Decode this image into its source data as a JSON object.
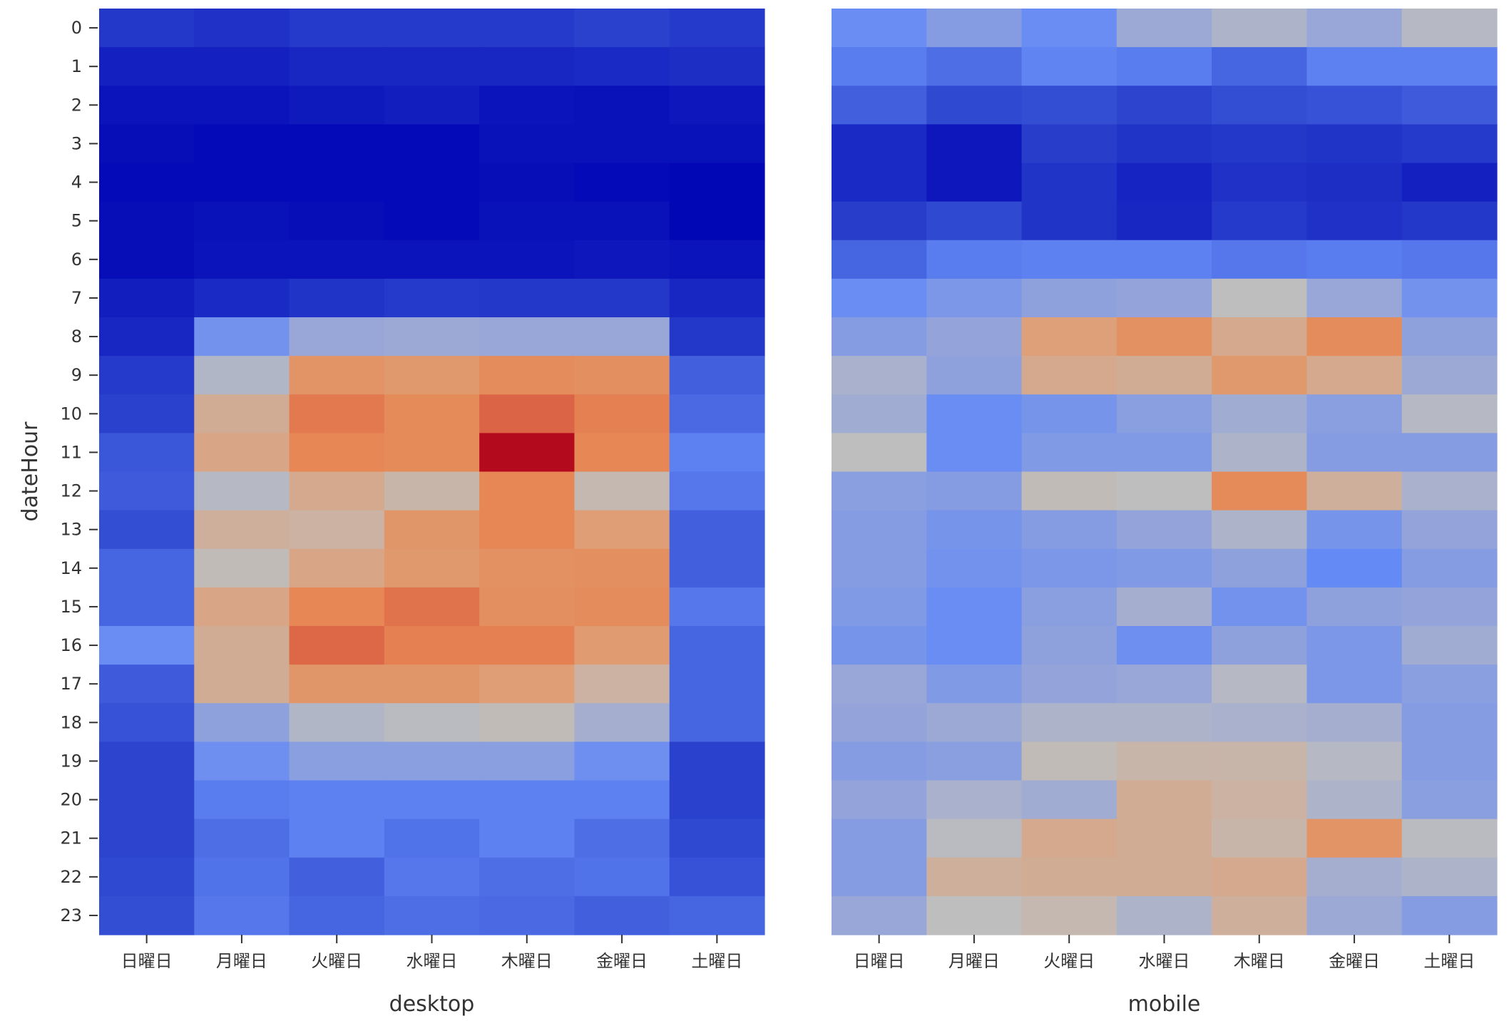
{
  "chart_data": [
    {
      "type": "heatmap",
      "xlabel": "desktop",
      "ylabel": "dateHour",
      "categories": [
        "日曜日",
        "月曜日",
        "火曜日",
        "水曜日",
        "木曜日",
        "金曜日",
        "土曜日"
      ],
      "y": [
        "0",
        "1",
        "2",
        "3",
        "4",
        "5",
        "6",
        "7",
        "8",
        "9",
        "10",
        "11",
        "12",
        "13",
        "14",
        "15",
        "16",
        "17",
        "18",
        "19",
        "20",
        "21",
        "22",
        "23"
      ],
      "colormap": "coolwarm",
      "value_range": [
        0,
        1
      ],
      "values": [
        [
          0.16,
          0.14,
          0.17,
          0.17,
          0.17,
          0.19,
          0.17
        ],
        [
          0.09,
          0.09,
          0.11,
          0.11,
          0.11,
          0.12,
          0.13
        ],
        [
          0.05,
          0.05,
          0.07,
          0.08,
          0.05,
          0.04,
          0.06
        ],
        [
          0.03,
          0.02,
          0.02,
          0.02,
          0.04,
          0.04,
          0.04
        ],
        [
          0.02,
          0.02,
          0.02,
          0.02,
          0.03,
          0.02,
          0.01
        ],
        [
          0.03,
          0.04,
          0.03,
          0.02,
          0.04,
          0.04,
          0.01
        ],
        [
          0.03,
          0.05,
          0.05,
          0.05,
          0.05,
          0.06,
          0.05
        ],
        [
          0.08,
          0.12,
          0.15,
          0.17,
          0.16,
          0.16,
          0.11
        ],
        [
          0.11,
          0.38,
          0.46,
          0.47,
          0.46,
          0.46,
          0.16
        ],
        [
          0.17,
          0.52,
          0.7,
          0.68,
          0.73,
          0.72,
          0.26
        ],
        [
          0.19,
          0.61,
          0.79,
          0.74,
          0.85,
          0.77,
          0.28
        ],
        [
          0.24,
          0.63,
          0.75,
          0.74,
          1.0,
          0.75,
          0.33
        ],
        [
          0.25,
          0.53,
          0.62,
          0.58,
          0.75,
          0.57,
          0.31
        ],
        [
          0.22,
          0.6,
          0.59,
          0.69,
          0.75,
          0.66,
          0.26
        ],
        [
          0.27,
          0.56,
          0.63,
          0.68,
          0.71,
          0.72,
          0.26
        ],
        [
          0.27,
          0.63,
          0.75,
          0.81,
          0.72,
          0.73,
          0.31
        ],
        [
          0.36,
          0.61,
          0.84,
          0.77,
          0.77,
          0.67,
          0.27
        ],
        [
          0.25,
          0.61,
          0.69,
          0.69,
          0.66,
          0.59,
          0.27
        ],
        [
          0.23,
          0.44,
          0.52,
          0.54,
          0.56,
          0.49,
          0.27
        ],
        [
          0.2,
          0.37,
          0.43,
          0.43,
          0.43,
          0.37,
          0.19
        ],
        [
          0.2,
          0.32,
          0.33,
          0.33,
          0.33,
          0.33,
          0.19
        ],
        [
          0.2,
          0.29,
          0.33,
          0.3,
          0.33,
          0.29,
          0.21
        ],
        [
          0.21,
          0.3,
          0.26,
          0.31,
          0.29,
          0.3,
          0.23
        ],
        [
          0.22,
          0.31,
          0.27,
          0.29,
          0.28,
          0.26,
          0.27
        ]
      ]
    },
    {
      "type": "heatmap",
      "xlabel": "mobile",
      "ylabel": "",
      "categories": [
        "日曜日",
        "月曜日",
        "火曜日",
        "水曜日",
        "木曜日",
        "金曜日",
        "土曜日"
      ],
      "y": [
        "0",
        "1",
        "2",
        "3",
        "4",
        "5",
        "6",
        "7",
        "8",
        "9",
        "10",
        "11",
        "12",
        "13",
        "14",
        "15",
        "16",
        "17",
        "18",
        "19",
        "20",
        "21",
        "22",
        "23"
      ],
      "colormap": "coolwarm",
      "value_range": [
        0,
        1
      ],
      "values": [
        [
          0.36,
          0.42,
          0.36,
          0.47,
          0.51,
          0.46,
          0.53
        ],
        [
          0.32,
          0.29,
          0.34,
          0.32,
          0.27,
          0.33,
          0.33
        ],
        [
          0.26,
          0.21,
          0.22,
          0.2,
          0.22,
          0.23,
          0.25
        ],
        [
          0.12,
          0.06,
          0.18,
          0.15,
          0.16,
          0.15,
          0.17
        ],
        [
          0.12,
          0.06,
          0.15,
          0.1,
          0.14,
          0.13,
          0.09
        ],
        [
          0.18,
          0.21,
          0.15,
          0.11,
          0.17,
          0.14,
          0.16
        ],
        [
          0.27,
          0.32,
          0.33,
          0.33,
          0.31,
          0.32,
          0.31
        ],
        [
          0.36,
          0.4,
          0.44,
          0.45,
          0.55,
          0.46,
          0.38
        ],
        [
          0.42,
          0.45,
          0.65,
          0.71,
          0.62,
          0.73,
          0.44
        ],
        [
          0.5,
          0.44,
          0.62,
          0.61,
          0.68,
          0.62,
          0.47
        ],
        [
          0.48,
          0.36,
          0.39,
          0.43,
          0.48,
          0.43,
          0.53
        ],
        [
          0.55,
          0.36,
          0.41,
          0.41,
          0.51,
          0.42,
          0.42
        ],
        [
          0.43,
          0.42,
          0.56,
          0.55,
          0.74,
          0.6,
          0.5
        ],
        [
          0.42,
          0.39,
          0.42,
          0.45,
          0.51,
          0.39,
          0.45
        ],
        [
          0.42,
          0.38,
          0.4,
          0.41,
          0.44,
          0.35,
          0.42
        ],
        [
          0.41,
          0.36,
          0.43,
          0.49,
          0.38,
          0.44,
          0.45
        ],
        [
          0.39,
          0.36,
          0.44,
          0.37,
          0.44,
          0.4,
          0.48
        ],
        [
          0.46,
          0.41,
          0.45,
          0.46,
          0.53,
          0.4,
          0.43
        ],
        [
          0.45,
          0.47,
          0.51,
          0.51,
          0.5,
          0.49,
          0.42
        ],
        [
          0.42,
          0.43,
          0.56,
          0.58,
          0.58,
          0.53,
          0.42
        ],
        [
          0.45,
          0.5,
          0.48,
          0.61,
          0.59,
          0.51,
          0.43
        ],
        [
          0.42,
          0.54,
          0.62,
          0.61,
          0.58,
          0.7,
          0.54
        ],
        [
          0.42,
          0.6,
          0.61,
          0.61,
          0.62,
          0.49,
          0.51
        ],
        [
          0.46,
          0.55,
          0.57,
          0.51,
          0.6,
          0.47,
          0.42
        ]
      ]
    }
  ]
}
